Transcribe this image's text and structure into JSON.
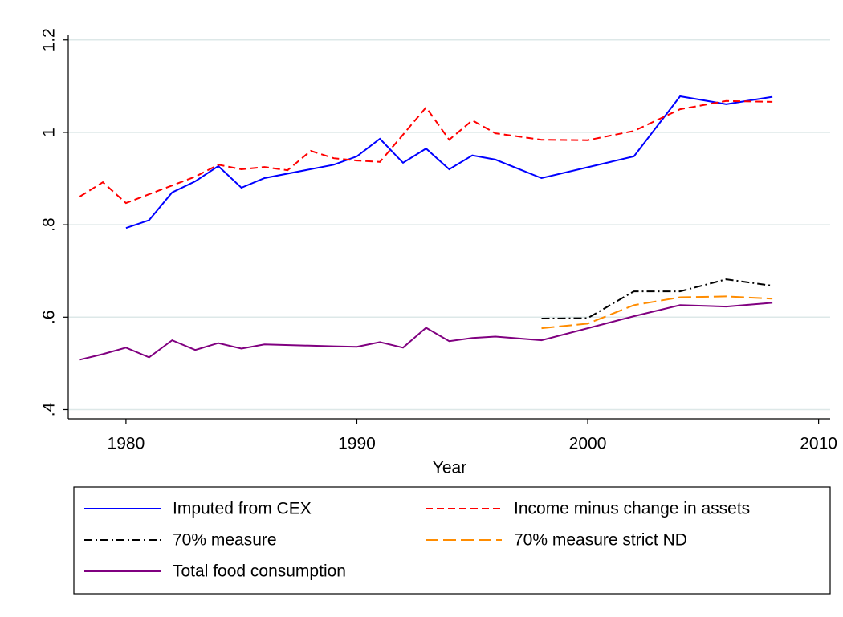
{
  "chart_data": {
    "type": "line",
    "x_label": "Year",
    "xlim": [
      1977.5,
      2010.5
    ],
    "xticks": [
      1980,
      1990,
      2000,
      2010
    ],
    "ylim": [
      0.38,
      1.21
    ],
    "yticks": [
      {
        "value": 0.4,
        "label": ".4"
      },
      {
        "value": 0.6,
        "label": ".6"
      },
      {
        "value": 0.8,
        "label": ".8"
      },
      1,
      1.2
    ],
    "grid": true,
    "legend": "bottom",
    "series": [
      {
        "name": "Imputed from CEX",
        "color": "#0000ff",
        "dash": "none",
        "x": [
          1980,
          1981,
          1982,
          1983,
          1984,
          1985,
          1986,
          1989,
          1990,
          1991,
          1992,
          1993,
          1994,
          1995,
          1996,
          1998,
          2002,
          2004,
          2006,
          2008
        ],
        "values": [
          0.793,
          0.81,
          0.87,
          0.894,
          0.927,
          0.88,
          0.901,
          0.93,
          0.948,
          0.986,
          0.934,
          0.965,
          0.92,
          0.95,
          0.941,
          0.901,
          0.948,
          1.078,
          1.061,
          1.077
        ]
      },
      {
        "name": "Income minus change in assets",
        "color": "#ff0000",
        "dash": "9,5",
        "x": [
          1978,
          1979,
          1980,
          1981,
          1982,
          1983,
          1984,
          1985,
          1986,
          1987,
          1988,
          1989,
          1990,
          1991,
          1992,
          1993,
          1994,
          1995,
          1996,
          1998,
          2000,
          2002,
          2004,
          2006,
          2008
        ],
        "values": [
          0.861,
          0.892,
          0.847,
          0.866,
          0.885,
          0.904,
          0.93,
          0.92,
          0.925,
          0.918,
          0.96,
          0.944,
          0.939,
          0.936,
          0.995,
          1.054,
          0.984,
          1.026,
          0.998,
          0.984,
          0.983,
          1.003,
          1.05,
          1.068,
          1.066
        ]
      },
      {
        "name": "70% measure",
        "color": "#000000",
        "dash": "10,4,2,4",
        "x": [
          1998,
          2000,
          2002,
          2004,
          2006,
          2008
        ],
        "values": [
          0.597,
          0.598,
          0.656,
          0.656,
          0.682,
          0.668
        ]
      },
      {
        "name": "70% measure strict ND",
        "color": "#ff8c00",
        "dash": "16,6",
        "x": [
          1998,
          2000,
          2002,
          2004,
          2006,
          2008
        ],
        "values": [
          0.576,
          0.586,
          0.626,
          0.643,
          0.645,
          0.64
        ]
      },
      {
        "name": "Total food consumption",
        "color": "#800080",
        "dash": "none",
        "x": [
          1978,
          1979,
          1980,
          1981,
          1982,
          1983,
          1984,
          1985,
          1986,
          1989,
          1990,
          1991,
          1992,
          1993,
          1994,
          1995,
          1996,
          1998,
          2002,
          2004,
          2006,
          2008
        ],
        "values": [
          0.508,
          0.52,
          0.534,
          0.513,
          0.55,
          0.529,
          0.544,
          0.532,
          0.541,
          0.537,
          0.536,
          0.546,
          0.534,
          0.577,
          0.548,
          0.555,
          0.558,
          0.55,
          0.602,
          0.626,
          0.623,
          0.631
        ]
      }
    ]
  }
}
